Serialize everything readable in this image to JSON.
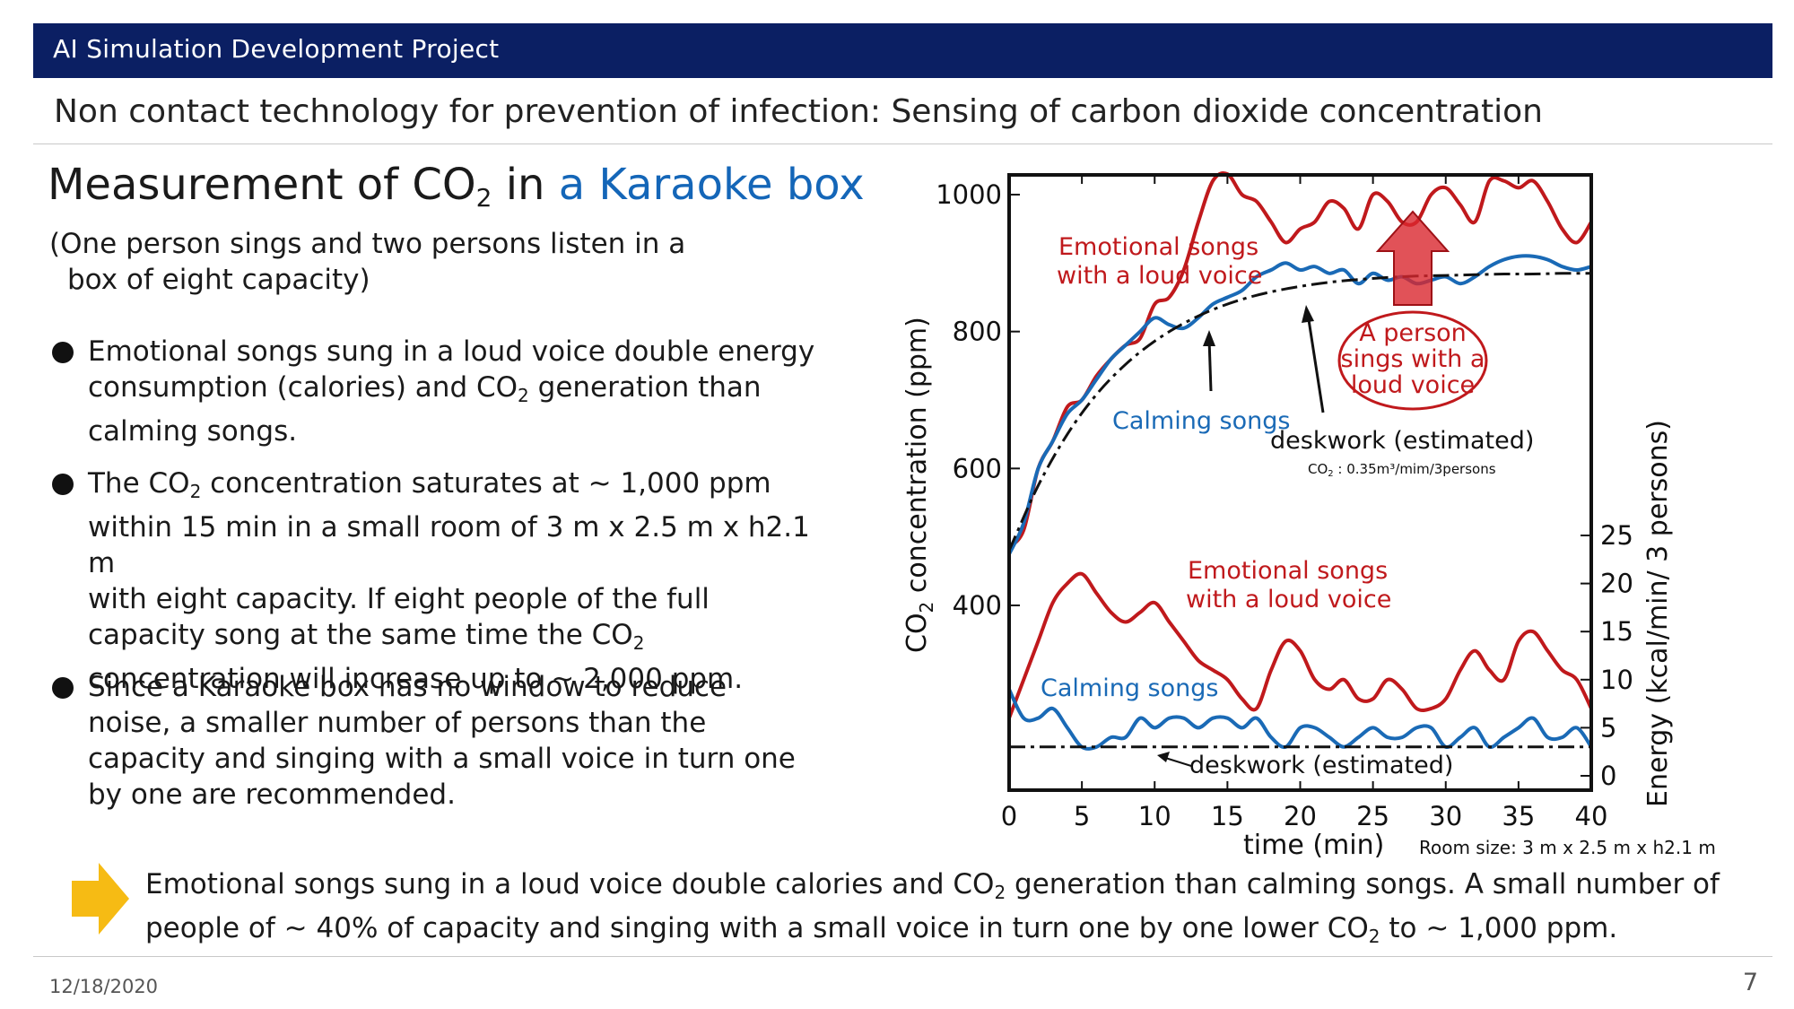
{
  "header": {
    "title": "AI Simulation Development Project"
  },
  "subtitle": "Non contact technology for prevention of infection:  Sensing of carbon dioxide concentration",
  "heading": {
    "prefix": "Measurement of CO",
    "sub": "2",
    "mid": " in ",
    "highlight": "a Karaoke box"
  },
  "intro": {
    "line1": "(One person sings and two persons listen in a",
    "line2": "box of eight capacity)"
  },
  "bullets": [
    {
      "l1": "Emotional songs sung in a loud voice double energy",
      "l2a": "consumption (calories) and CO",
      "l2sub": "2",
      "l2b": " generation than",
      "l3": "calming songs."
    },
    {
      "l1a": "The CO",
      "l1sub": "2",
      "l1b": " concentration saturates at ~ 1,000 ppm",
      "l2": "within 15 min in a small room of 3 m x 2.5 m x h2.1 m",
      "l3": "with eight capacity.  If eight people of the full",
      "l4a": "capacity song at the same time the CO",
      "l4sub": "2",
      "l5": "concentration will increase up to ~ 2,000 ppm."
    },
    {
      "l1": "Since a Karaoke box has no window to reduce",
      "l2": "noise, a smaller number of persons than the",
      "l3": "capacity and singing with a small voice  in turn one",
      "l4": "by one are recommended."
    }
  ],
  "conclusion": {
    "l1a": "Emotional songs sung in a loud voice double calories and CO",
    "l1sub": "2",
    "l1b": " generation than calming songs.  A small number of",
    "l2a": "people of ~ 40% of capacity and singing with a small voice  in turn one by one lower CO",
    "l2sub": "2",
    "l2b": " to ~ 1,000 ppm."
  },
  "footer": {
    "date": "12/18/2020",
    "page": "7"
  },
  "annotations": {
    "emotional_top": [
      "Emotional songs",
      "with a loud voice"
    ],
    "calming_top": "Calming songs",
    "deskwork_top": "deskwork (estimated)",
    "deskwork_note_a": "CO",
    "deskwork_note_sub": "2",
    "deskwork_note_b": " : 0.35m³/mim/3persons",
    "person": [
      "A person",
      "sings with a",
      "loud voice"
    ],
    "emotional_bottom": [
      "Emotional songs",
      "with a loud voice"
    ],
    "calming_bottom": "Calming songs",
    "deskwork_bottom": "deskwork (estimated)",
    "room_size": "Room size: 3 m x 2.5 m x h2.1 m"
  },
  "colors": {
    "emotional": "#c0191c",
    "calming": "#1a6ab6",
    "deskwork": "#111111",
    "header_bg": "#0b1f63",
    "arrow": "#f6bb14"
  },
  "chart_data": {
    "type": "line",
    "xlabel": "time (min)",
    "xlim": [
      0,
      40
    ],
    "x_ticks": [
      "0",
      "5",
      "10",
      "15",
      "20",
      "25",
      "30",
      "35",
      "40"
    ],
    "ylabel_left_a": "CO",
    "ylabel_left_sub": "2",
    "ylabel_left_b": " concentration (ppm)",
    "y_ticks_left": [
      "400",
      "600",
      "800",
      "1000"
    ],
    "ylabel_right": "Energy (kcal/min/ 3 persons)",
    "y_ticks_right": [
      "0",
      "5",
      "10",
      "15",
      "20",
      "25"
    ],
    "co2_series": [
      {
        "name": "Emotional songs with a loud voice",
        "color": "#c0191c",
        "x": [
          0,
          1,
          2,
          3,
          4,
          5,
          6,
          7,
          8,
          9,
          10,
          11,
          12,
          13,
          14,
          15,
          16,
          17,
          18,
          19,
          20,
          21,
          22,
          23,
          24,
          25,
          26,
          27,
          28,
          29,
          30,
          31,
          32,
          33,
          34,
          35,
          36,
          37,
          38,
          39,
          40
        ],
        "y": [
          485,
          510,
          600,
          640,
          690,
          700,
          735,
          760,
          780,
          790,
          840,
          850,
          890,
          960,
          1020,
          1030,
          1000,
          990,
          960,
          930,
          950,
          960,
          990,
          980,
          950,
          1000,
          990,
          960,
          960,
          1000,
          1010,
          985,
          960,
          1020,
          1020,
          1010,
          1020,
          990,
          950,
          930,
          960
        ]
      },
      {
        "name": "Calming songs",
        "color": "#1a6ab6",
        "x": [
          0,
          1,
          2,
          3,
          4,
          5,
          6,
          7,
          8,
          9,
          10,
          11,
          12,
          13,
          14,
          15,
          16,
          17,
          18,
          19,
          20,
          21,
          22,
          23,
          24,
          25,
          26,
          27,
          28,
          29,
          30,
          31,
          32,
          33,
          34,
          35,
          36,
          37,
          38,
          39,
          40
        ],
        "y": [
          475,
          520,
          600,
          640,
          680,
          700,
          730,
          760,
          780,
          800,
          820,
          810,
          805,
          820,
          840,
          850,
          860,
          880,
          890,
          900,
          890,
          895,
          885,
          890,
          870,
          885,
          875,
          880,
          870,
          875,
          880,
          870,
          880,
          895,
          905,
          910,
          910,
          905,
          895,
          890,
          895
        ]
      },
      {
        "name": "deskwork (estimated)",
        "color": "#111111",
        "dash": true,
        "x": [
          0,
          2,
          4,
          6,
          8,
          10,
          12,
          14,
          16,
          18,
          20,
          22,
          24,
          26,
          28,
          30,
          32,
          34,
          36,
          38,
          40
        ],
        "y": [
          480,
          575,
          650,
          708,
          752,
          786,
          812,
          832,
          847,
          858,
          866,
          872,
          876,
          879,
          881,
          882,
          883,
          884,
          884,
          885,
          885
        ]
      }
    ],
    "energy_series": [
      {
        "name": "Emotional songs with a loud voice",
        "color": "#c0191c",
        "x": [
          0,
          1,
          2,
          3,
          4,
          5,
          6,
          7,
          8,
          9,
          10,
          11,
          12,
          13,
          14,
          15,
          16,
          17,
          18,
          19,
          20,
          21,
          22,
          23,
          24,
          25,
          26,
          27,
          28,
          29,
          30,
          31,
          32,
          33,
          34,
          35,
          36,
          37,
          38,
          39,
          40
        ],
        "y": [
          6,
          10,
          14,
          18,
          20,
          21,
          19,
          17,
          16,
          17,
          18,
          16,
          14,
          12,
          11,
          10,
          8,
          7,
          11,
          14,
          13,
          10,
          9,
          10,
          8,
          8,
          10,
          9,
          7,
          7,
          8,
          11,
          13,
          11,
          10,
          14,
          15,
          13,
          11,
          10,
          7
        ]
      },
      {
        "name": "Calming songs",
        "color": "#1a6ab6",
        "x": [
          0,
          1,
          2,
          3,
          4,
          5,
          6,
          7,
          8,
          9,
          10,
          11,
          12,
          13,
          14,
          15,
          16,
          17,
          18,
          19,
          20,
          21,
          22,
          23,
          24,
          25,
          26,
          27,
          28,
          29,
          30,
          31,
          32,
          33,
          34,
          35,
          36,
          37,
          38,
          39,
          40
        ],
        "y": [
          9,
          6,
          6,
          7,
          5,
          3,
          3,
          4,
          4,
          6,
          5,
          6,
          6,
          5,
          6,
          6,
          5,
          6,
          4,
          3,
          5,
          5,
          4,
          3,
          4,
          5,
          4,
          4,
          5,
          5,
          3,
          4,
          5,
          3,
          4,
          5,
          6,
          4,
          4,
          5,
          3
        ]
      },
      {
        "name": "deskwork (estimated)",
        "color": "#111111",
        "dash": true,
        "x": [
          0,
          40
        ],
        "y": [
          3,
          3
        ]
      }
    ]
  }
}
